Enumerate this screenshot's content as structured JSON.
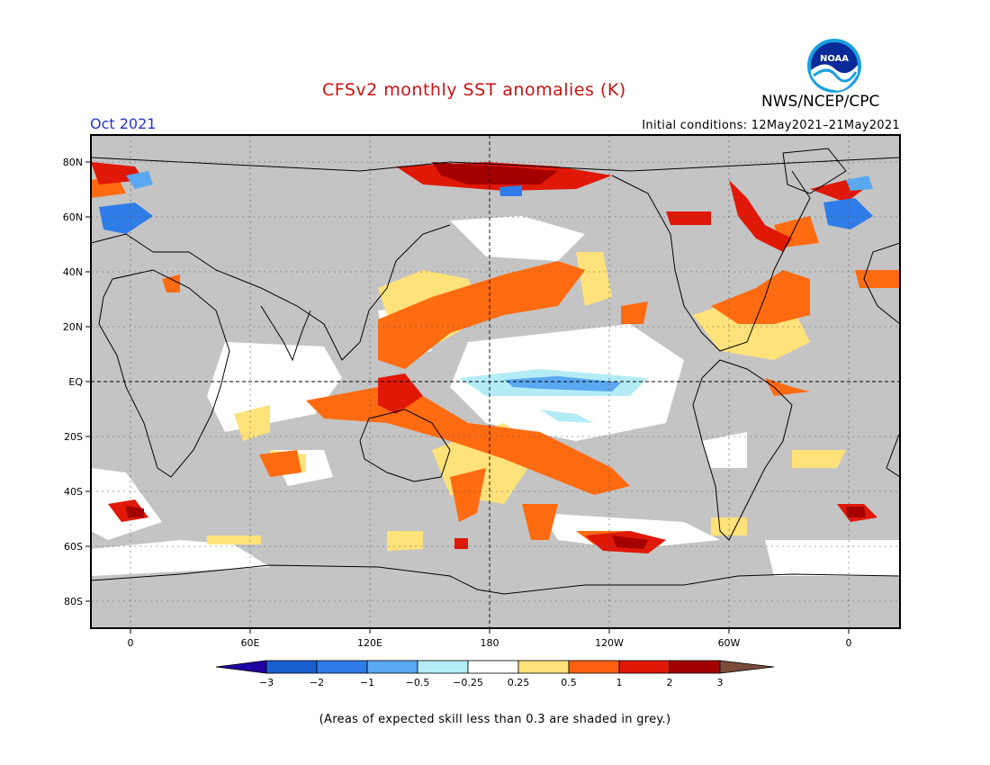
{
  "header": {
    "title": "CFSv2 monthly SST anomalies (K)",
    "agency": "NWS/NCEP/CPC",
    "month": "Oct 2021",
    "initial_conditions": "Initial conditions: 12May2021–21May2021"
  },
  "logo": {
    "icon": "noaa-logo-icon",
    "text": "NOAA"
  },
  "map": {
    "projection": "equirectangular, 0° to 360°+ longitude",
    "lat_labels": [
      "80N",
      "60N",
      "40N",
      "20N",
      "EQ",
      "20S",
      "40S",
      "60S",
      "80S"
    ],
    "lon_labels": [
      "0",
      "60E",
      "120E",
      "180",
      "120W",
      "60W",
      "0"
    ],
    "land_color": "#c8c8c8",
    "grey_mask_color": "#c0c0c0"
  },
  "colorbar": {
    "ticks": [
      "−3",
      "−2",
      "−1",
      "−0.5",
      "−0.25",
      "0.25",
      "0.5",
      "1",
      "2",
      "3"
    ],
    "colors": [
      "#1f00a0",
      "#1a5fd0",
      "#2e7de8",
      "#5aa8f0",
      "#b4ecf6",
      "#ffffff",
      "#ffe27a",
      "#ff6010",
      "#e01808",
      "#a50000",
      "#7a4a3a"
    ]
  },
  "caption": "(Areas of expected skill less than 0.3 are shaded in grey.)",
  "anomaly_regions": [
    {
      "name": "equatorial-pacific-cool",
      "class": "-0.5"
    },
    {
      "name": "north-pacific-warm",
      "class": "1"
    },
    {
      "name": "south-pacific-warm",
      "class": "1"
    },
    {
      "name": "arctic-warm",
      "class": "2"
    },
    {
      "name": "north-atlantic-warm",
      "class": "1"
    },
    {
      "name": "indian-ocean-neutral",
      "class": "0"
    }
  ]
}
